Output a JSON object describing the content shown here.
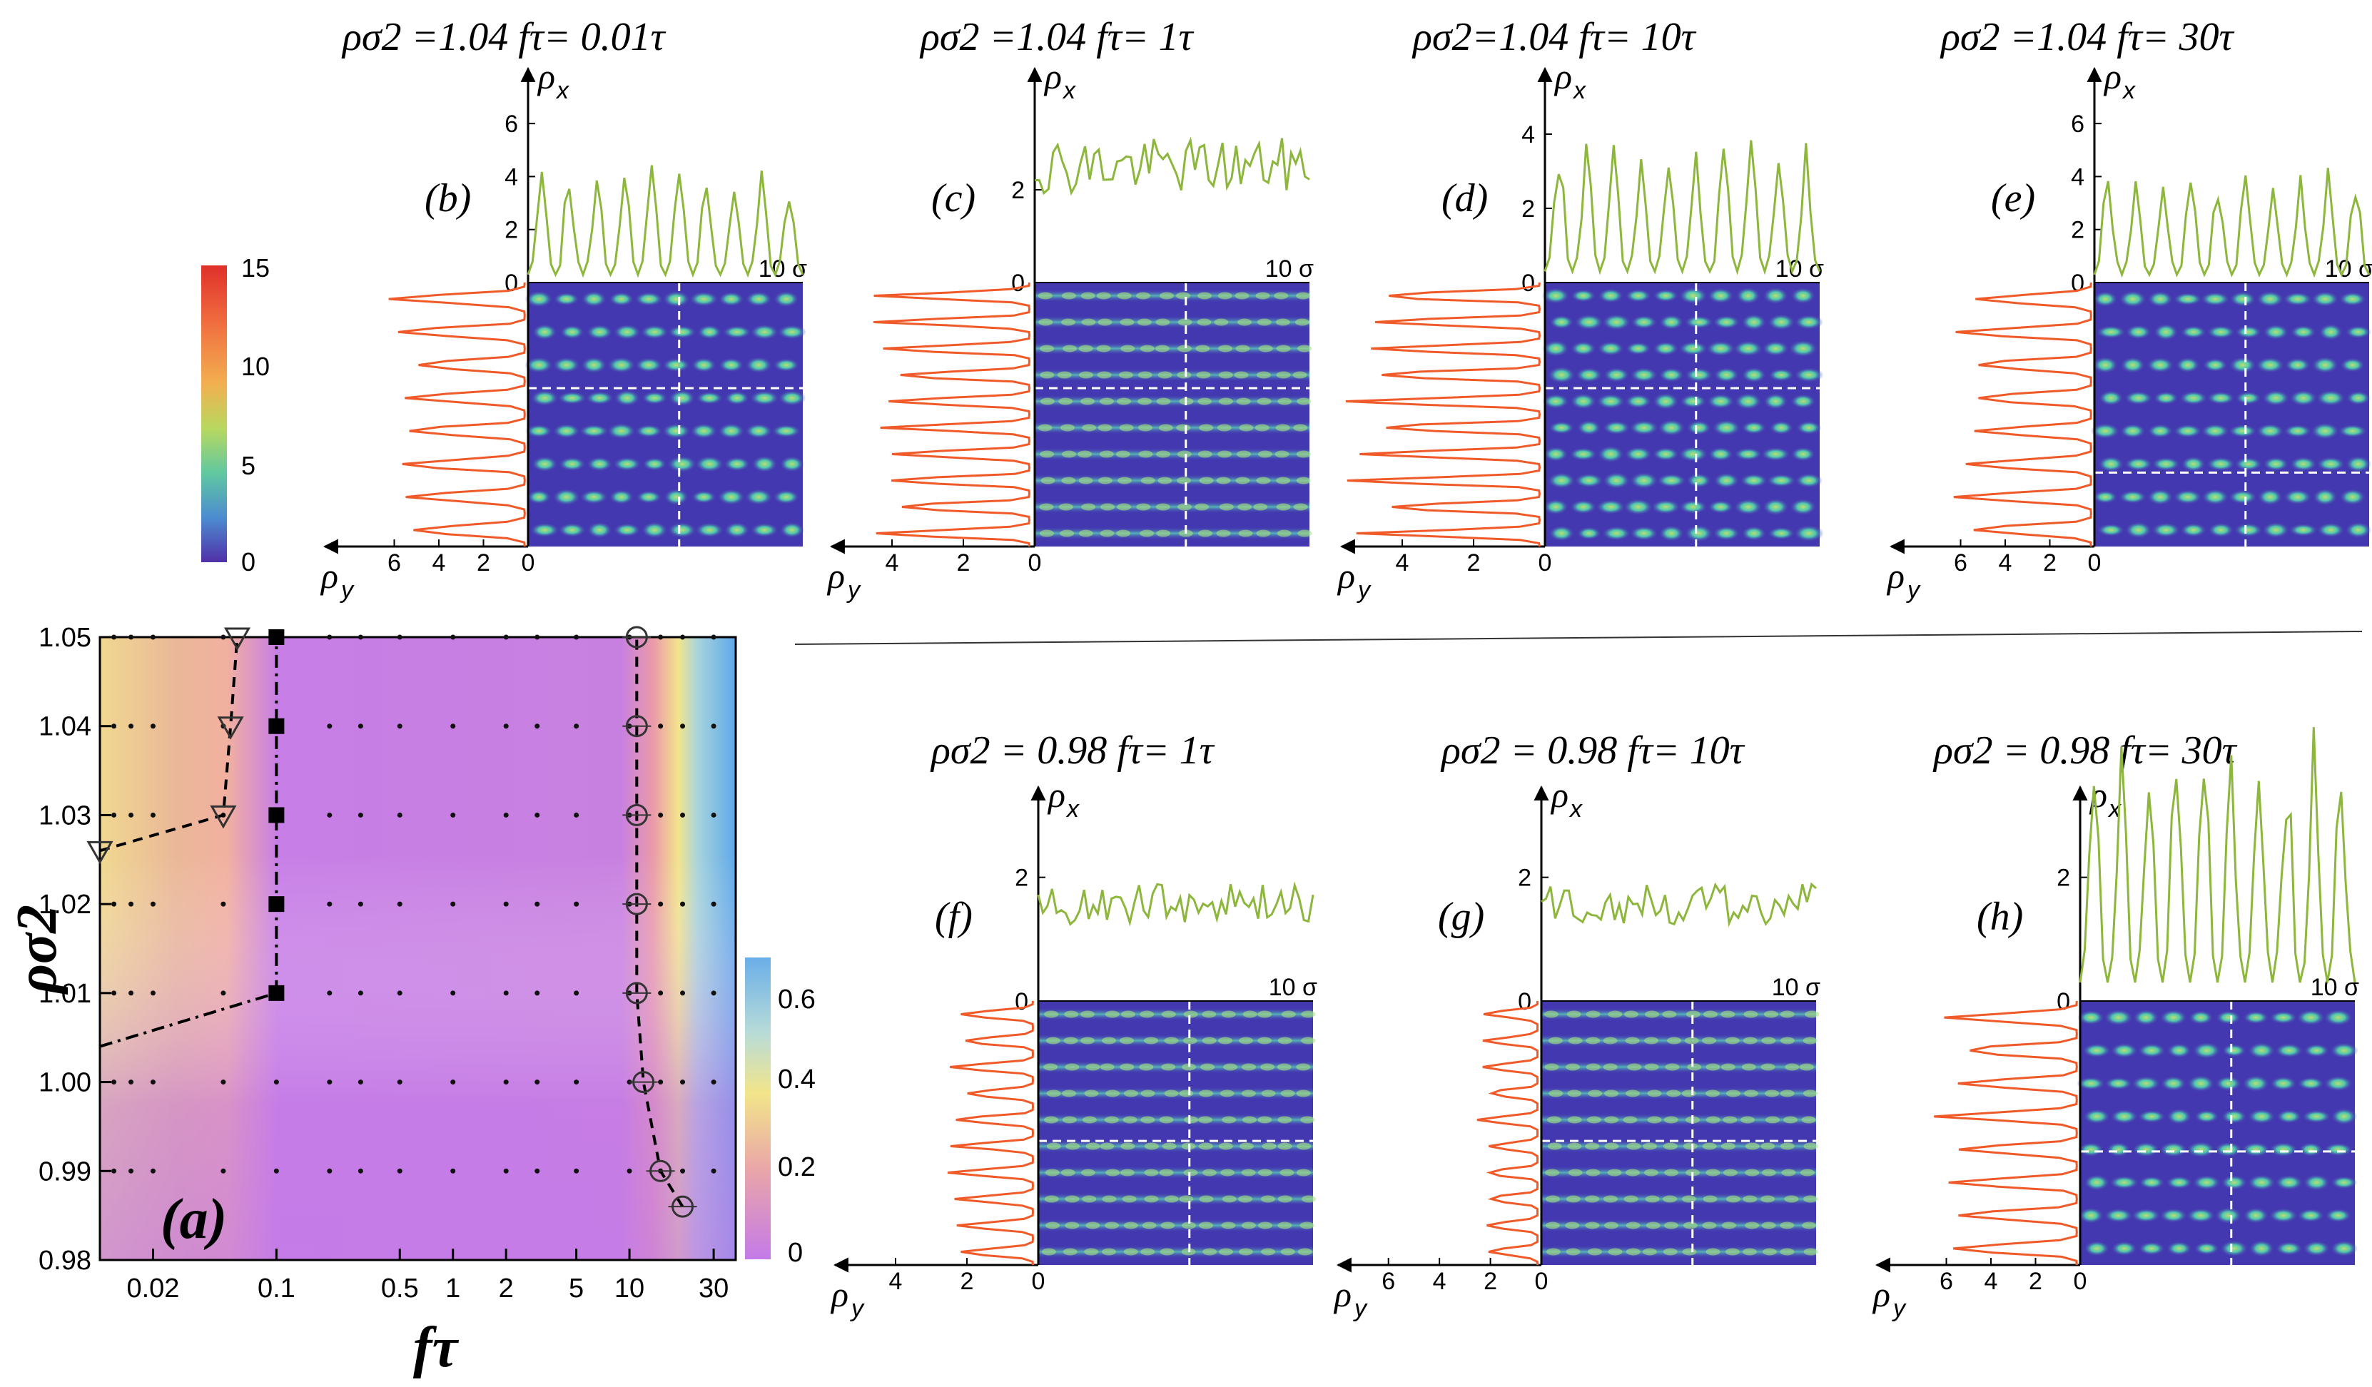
{
  "colors": {
    "x_profile": "#8db63c",
    "y_profile": "#f05a28",
    "map_bg": "#4438b0",
    "map_spot": "#6ad89a",
    "phase_purple": "#c07ae8",
    "phase_pink": "#e89ab8",
    "phase_yellow": "#f2e28a",
    "phase_blue": "#6aaee8"
  },
  "colorbar_top": {
    "ticks": [
      "15",
      "10",
      "5",
      "0"
    ]
  },
  "colorbar_phase": {
    "ticks": [
      "0.6",
      "0.4",
      "0.2",
      "0"
    ]
  },
  "chart_data": [
    {
      "type": "heatmap",
      "panel": "(a)",
      "xlabel": "fτ",
      "ylabel": "ρσ2",
      "x_scale": "log",
      "xlim": [
        0.01,
        40
      ],
      "ylim": [
        0.98,
        1.05
      ],
      "x_ticks": [
        "0.02",
        "0.1",
        "0.5",
        "1",
        "2",
        "5",
        "10",
        "30"
      ],
      "x_tick_values": [
        0.02,
        0.1,
        0.5,
        1,
        2,
        5,
        10,
        30
      ],
      "y_ticks": [
        "0.98",
        "0.99",
        "1.00",
        "1.01",
        "1.02",
        "1.03",
        "1.04",
        "1.05"
      ],
      "y_tick_values": [
        0.98,
        0.99,
        1.0,
        1.01,
        1.02,
        1.03,
        1.04,
        1.05
      ],
      "grid_x": [
        0.012,
        0.015,
        0.02,
        0.05,
        0.1,
        0.2,
        0.3,
        0.5,
        1,
        2,
        3,
        5,
        10,
        15,
        20,
        30
      ],
      "grid_y": [
        0.99,
        1.0,
        1.01,
        1.02,
        1.03,
        1.04,
        1.05
      ],
      "series": [
        {
          "name": "triangles",
          "marker": "triangle-down",
          "line": "dashed",
          "x": [
            0.01,
            0.05,
            0.055,
            0.06
          ],
          "y": [
            1.026,
            1.03,
            1.04,
            1.05
          ]
        },
        {
          "name": "squares",
          "marker": "square",
          "line": "dashdot",
          "x": [
            0.1,
            0.1,
            0.1,
            0.1,
            0.1
          ],
          "y": [
            1.01,
            1.02,
            1.03,
            1.04,
            1.05
          ]
        },
        {
          "name": "lower-boundary",
          "marker": "none",
          "line": "dashdot",
          "x": [
            0.01,
            0.1
          ],
          "y": [
            1.004,
            1.01
          ]
        },
        {
          "name": "circles",
          "marker": "circle",
          "line": "dashed",
          "x": [
            20,
            15,
            12,
            11,
            11,
            11,
            11,
            11
          ],
          "y": [
            0.986,
            0.99,
            1.0,
            1.01,
            1.02,
            1.03,
            1.04,
            1.05
          ]
        }
      ]
    },
    {
      "type": "line",
      "panel": "(b)",
      "title": "ρσ2 =1.04   fτ= 0.01τ",
      "x_ticks": [
        "2",
        "4",
        "6"
      ],
      "y_ticks": [
        "2",
        "4",
        "6"
      ],
      "ymax": 7,
      "xmax": 8,
      "x_end": "10 σ",
      "nx": 10,
      "ny": 8,
      "mode": "spots",
      "hdash": 0.4,
      "vdash": 0.55,
      "amp": 3.5
    },
    {
      "type": "line",
      "panel": "(c)",
      "title": "ρσ2 =1.04    fτ= 1τ",
      "x_ticks": [
        "2",
        "4"
      ],
      "y_ticks": [
        "2"
      ],
      "ymax": 4,
      "xmax": 5,
      "x_end": "10 σ",
      "nx": 10,
      "ny": 10,
      "mode": "stripes",
      "hdash": 0.4,
      "vdash": 0.55,
      "amp": 2.4
    },
    {
      "type": "line",
      "panel": "(d)",
      "title": "ρσ2=1.04    fτ= 10τ",
      "x_ticks": [
        "2",
        "4"
      ],
      "y_ticks": [
        "2",
        "4"
      ],
      "ymax": 5,
      "xmax": 5,
      "x_end": "10 σ",
      "nx": 10,
      "ny": 10,
      "mode": "spots",
      "hdash": 0.4,
      "vdash": 0.55,
      "amp": 3
    },
    {
      "type": "line",
      "panel": "(e)",
      "title": "ρσ2 =1.04  fτ= 30τ",
      "x_ticks": [
        "2",
        "4",
        "6"
      ],
      "y_ticks": [
        "2",
        "4",
        "6"
      ],
      "ymax": 7,
      "xmax": 8,
      "x_end": "10 σ",
      "nx": 10,
      "ny": 8,
      "mode": "spots",
      "hdash": 0.72,
      "vdash": 0.55,
      "amp": 3.5
    },
    {
      "type": "line",
      "panel": "(f)",
      "title": "ρσ2 = 0.98   fτ= 1τ",
      "x_ticks": [
        "2",
        "4"
      ],
      "y_ticks": [
        "2"
      ],
      "ymax": 3,
      "xmax": 5,
      "x_end": "10 σ",
      "nx": 10,
      "ny": 10,
      "mode": "stripes",
      "hdash": 0.53,
      "vdash": 0.55,
      "amp": 1.3
    },
    {
      "type": "line",
      "panel": "(g)",
      "title": "ρσ2 = 0.98  fτ= 10τ",
      "x_ticks": [
        "2",
        "4",
        "6"
      ],
      "y_ticks": [
        "2"
      ],
      "ymax": 3,
      "xmax": 7,
      "x_end": "10 σ",
      "nx": 10,
      "ny": 10,
      "mode": "stripes",
      "hdash": 0.53,
      "vdash": 0.55,
      "amp": 1.3
    },
    {
      "type": "line",
      "panel": "(h)",
      "title": "ρσ2 = 0.98  fτ= 30τ",
      "x_ticks": [
        "2",
        "4",
        "6"
      ],
      "y_ticks": [
        "2"
      ],
      "ymax": 3,
      "xmax": 8,
      "x_end": "10 σ",
      "nx": 10,
      "ny": 8,
      "mode": "spots",
      "hdash": 0.57,
      "vdash": 0.55,
      "amp": 3.5
    }
  ]
}
